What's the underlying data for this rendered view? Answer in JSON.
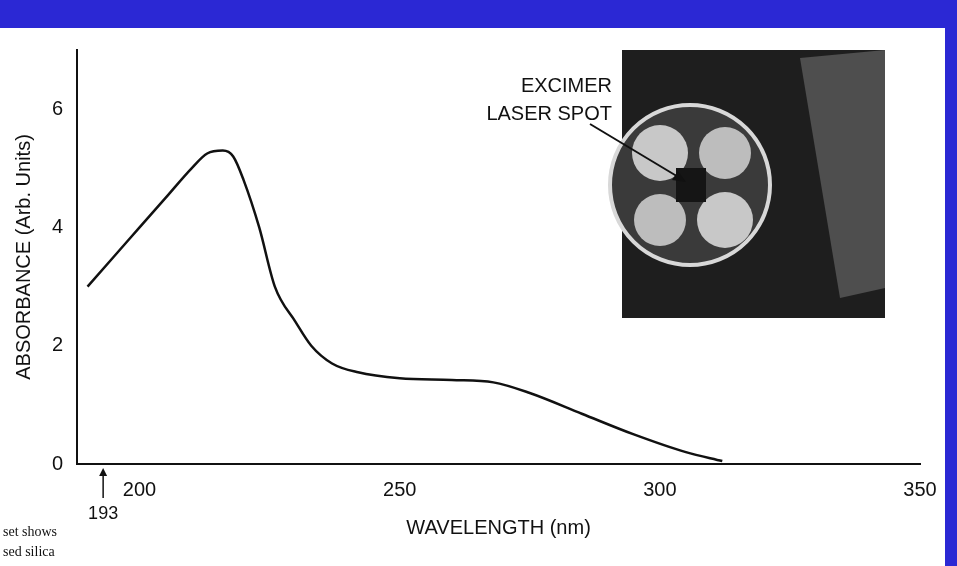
{
  "chart_data": {
    "type": "line",
    "x_label": "WAVELENGTH (nm)",
    "y_label": "ABSORBANCE (Arb. Units)",
    "x": [
      190,
      195,
      200,
      205,
      210,
      213,
      216,
      218,
      220,
      223,
      226,
      230,
      233,
      237,
      242,
      250,
      260,
      268,
      275,
      285,
      295,
      305,
      312
    ],
    "values": [
      3.0,
      3.5,
      4.0,
      4.5,
      5.0,
      5.25,
      5.3,
      5.2,
      4.8,
      4.0,
      3.0,
      2.4,
      2.0,
      1.7,
      1.55,
      1.45,
      1.42,
      1.38,
      1.2,
      0.85,
      0.5,
      0.2,
      0.05
    ],
    "color": "#111111",
    "xlim": [
      188,
      350
    ],
    "xticks": [
      200,
      250,
      300,
      350
    ],
    "ylim": [
      0,
      7
    ],
    "yticks": [
      0,
      2,
      4,
      6
    ],
    "grid": false,
    "annotations": [
      {
        "text": "EXCIMER LASER SPOT"
      },
      {
        "text": "193",
        "x": 193
      },
      {
        "text": "set shows"
      },
      {
        "text": "sed silica"
      }
    ]
  }
}
